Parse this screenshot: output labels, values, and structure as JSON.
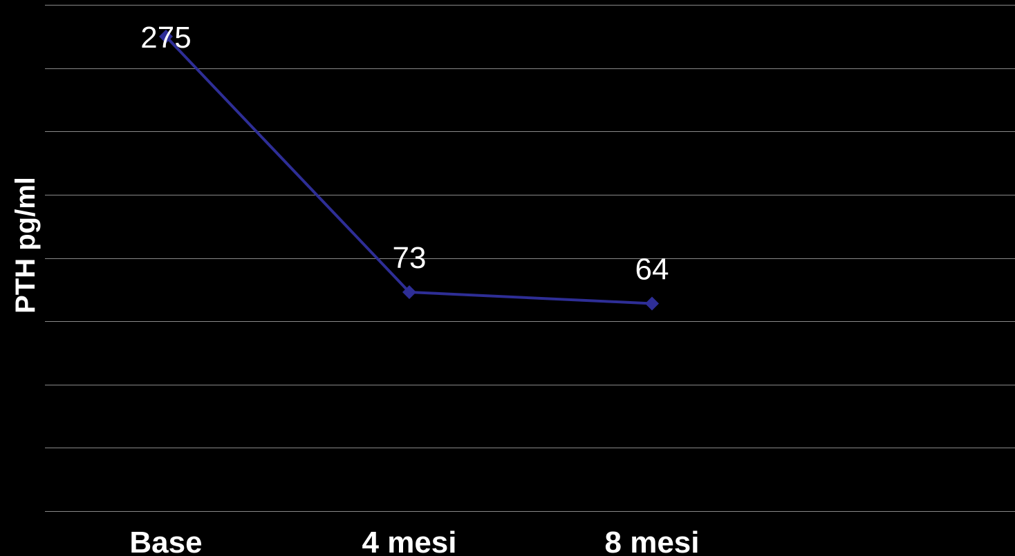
{
  "chart_data": {
    "type": "line",
    "title": "",
    "xlabel": "",
    "ylabel": "PTH pg/ml",
    "categories": [
      "Base",
      "4 mesi",
      "8 mesi"
    ],
    "series": [
      {
        "values": [
          275,
          73,
          64
        ],
        "color": "#2e2e96",
        "marker": "diamond"
      }
    ],
    "data_labels": [
      "275",
      "73",
      "64"
    ],
    "ylim": [
      -100,
      300
    ],
    "y_gridline_step": 50,
    "y_tick_labels_shown": false,
    "grid": true,
    "grid_color": "#8a8a8a",
    "legend": "none",
    "background": "#000000",
    "text_color": "#ffffff"
  }
}
